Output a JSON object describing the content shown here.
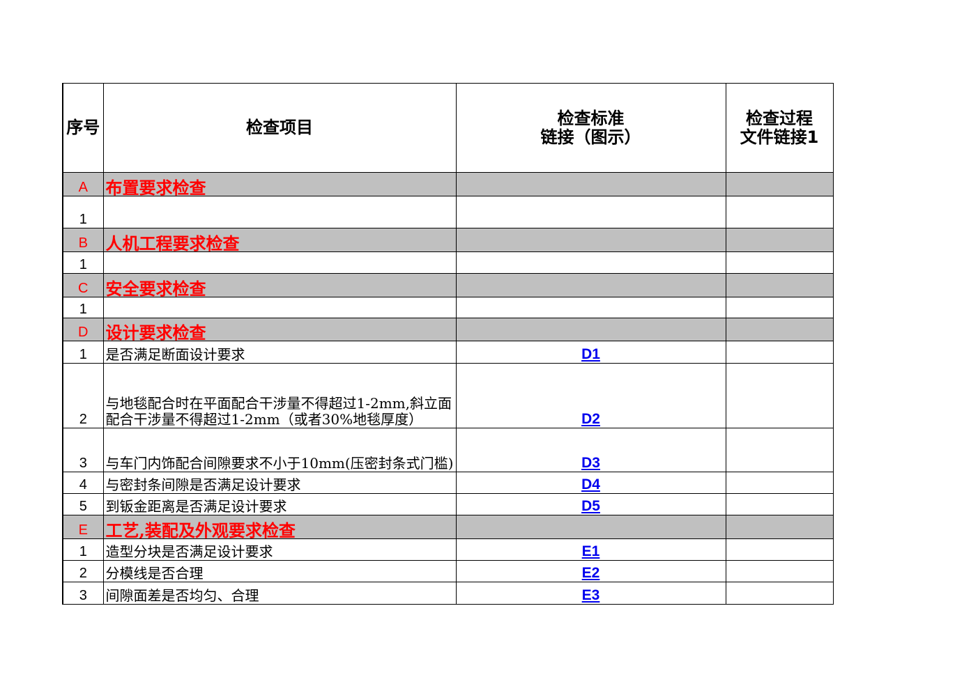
{
  "header": {
    "no": "序号",
    "item": "检查项目",
    "standard": [
      "检查标准",
      "链接（图示）"
    ],
    "process": [
      "检查过程",
      "文件链接1"
    ]
  },
  "rows": [
    {
      "no": "A",
      "item": "布置要求检查",
      "section": true
    },
    {
      "no": "1"
    },
    {
      "no": "B",
      "item": "人机工程要求检查",
      "section": true
    },
    {
      "no": "1"
    },
    {
      "no": "C",
      "item": "安全要求检查",
      "section": true
    },
    {
      "no": "1"
    },
    {
      "no": "D",
      "item": "设计要求检查",
      "section": true
    },
    {
      "no": "1",
      "item": "是否满足断面设计要求",
      "link": "D1"
    },
    {
      "no": "2",
      "item": "与地毯配合时在平面配合干涉量不得超过1-2mm,斜立面配合干涉量不得超过1-2mm（或者30%地毯厚度）",
      "link": "D2"
    },
    {
      "no": "3",
      "item": "与车门内饰配合间隙要求不小于10mm(压密封条式门槛)",
      "link": "D3"
    },
    {
      "no": "4",
      "item": "与密封条间隙是否满足设计要求",
      "link": "D4"
    },
    {
      "no": "5",
      "item": "到钣金距离是否满足设计要求",
      "link": "D5"
    },
    {
      "no": "E",
      "item": "工艺,装配及外观要求检查",
      "section": true
    },
    {
      "no": "1",
      "item": "造型分块是否满足设计要求",
      "link": "E1"
    },
    {
      "no": "2",
      "item": "分模线是否合理",
      "link": "E2"
    },
    {
      "no": "3",
      "item": "间隙面差是否均匀、合理",
      "link": "E3"
    }
  ]
}
